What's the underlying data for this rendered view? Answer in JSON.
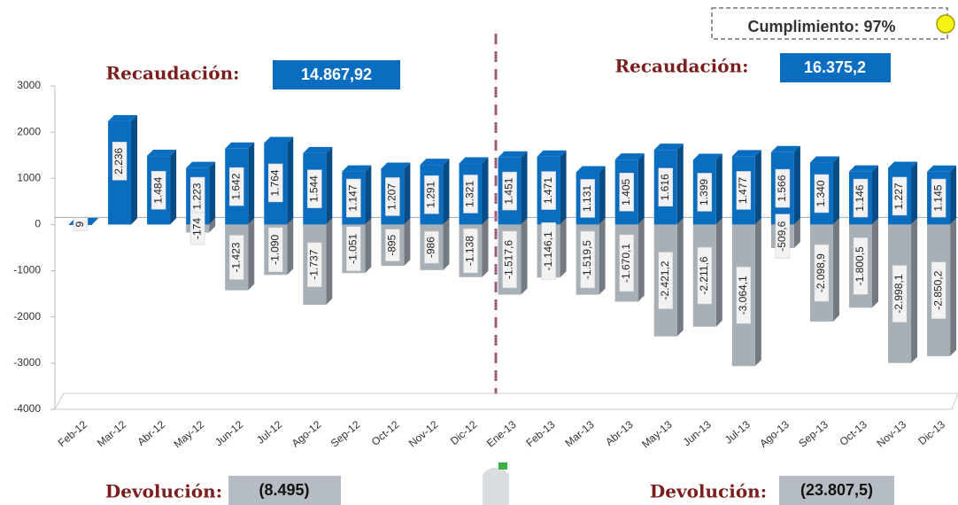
{
  "chart_data": {
    "type": "bar",
    "categories": [
      "Feb-12",
      "Mar-12",
      "Abr-12",
      "May-12",
      "Jun-12",
      "Jul-12",
      "Ago-12",
      "Sep-12",
      "Oct-12",
      "Nov-12",
      "Dic-12",
      "Ene-13",
      "Feb-13",
      "Mar-13",
      "Abr-13",
      "May-13",
      "Jun-13",
      "Jul-13",
      "Ago-13",
      "Sep-13",
      "Oct-13",
      "Nov-13",
      "Dic-13"
    ],
    "series": [
      {
        "color": "#0a6dc0",
        "values": [
          9,
          2236,
          1484,
          1223,
          1642,
          1764,
          1544,
          1147,
          1207,
          1291,
          1321,
          1451,
          1471,
          1131,
          1405,
          1616,
          1399,
          1477,
          1566,
          1340,
          1146,
          1227,
          1145
        ],
        "value_labels": [
          "9",
          "2.236",
          "1.484",
          "1.223",
          "1.642",
          "1.764",
          "1.544",
          "1.147",
          "1.207",
          "1.291",
          "1.321",
          "1.451",
          "1.471",
          "1.131",
          "1.405",
          "1.616",
          "1.399",
          "1.477",
          "1.566",
          "1.340",
          "1.146",
          "1.227",
          "1.145"
        ]
      },
      {
        "color": "#a7afb7",
        "values": [
          null,
          null,
          null,
          -174,
          -1423,
          -1090,
          -1737,
          -1051,
          -895,
          -986,
          -1138,
          -1517.6,
          -1146.1,
          -1519.5,
          -1670.1,
          -2421.2,
          -2211.6,
          -3064.1,
          -509.6,
          -2098.9,
          -1800.5,
          -2998.1,
          -2850.2
        ],
        "value_labels": [
          null,
          null,
          null,
          "-174",
          "-1.423",
          "-1.090",
          "-1.737",
          "-1.051",
          "-895",
          "-986",
          "-1.138",
          "-1.517,6",
          "-1.146,1",
          "-1.519,5",
          "-1.670,1",
          "-2.421,2",
          "-2.211,6",
          "-3.064,1",
          "-509,6",
          "-2.098,9",
          "-1.800,5",
          "-2.998,1",
          "-2.850,2"
        ]
      }
    ],
    "ylim": [
      -4000,
      3000
    ],
    "yticks": [
      -4000,
      -3000,
      -2000,
      -1000,
      0,
      1000,
      2000,
      3000
    ],
    "grid": false,
    "annotations": [
      "Recaudación:",
      "14.867,92",
      "Recaudación:",
      "16.375,2",
      "Cumplimiento: 97%",
      "Devolución:",
      "(8.495)",
      "Devolución:",
      "(23.807,5)"
    ]
  }
}
